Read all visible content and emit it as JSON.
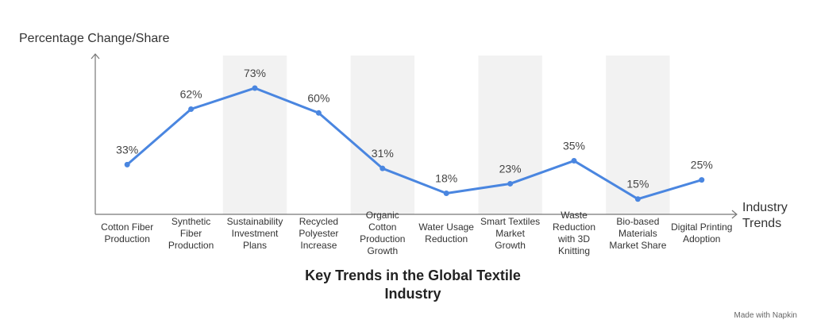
{
  "chart_data": {
    "type": "line",
    "title": "Key Trends in the Global Textile Industry",
    "y_label": "Percentage Change/Share",
    "x_label": "Industry Trends",
    "categories": [
      "Cotton Fiber Production",
      "Synthetic Fiber Production",
      "Sustainability Investment Plans",
      "Recycled Polyester Increase",
      "Organic Cotton Production Growth",
      "Water Usage Reduction",
      "Smart Textiles Market Growth",
      "Waste Reduction with 3D Knitting",
      "Bio-based Materials Market Share",
      "Digital Printing Adoption"
    ],
    "values": [
      33,
      62,
      73,
      60,
      31,
      18,
      23,
      35,
      15,
      25
    ],
    "value_labels": [
      "33%",
      "62%",
      "73%",
      "60%",
      "31%",
      "18%",
      "23%",
      "35%",
      "15%",
      "25%"
    ],
    "color": "#4a86e0",
    "band_color": "#f2f2f2",
    "ylim": [
      7,
      90
    ]
  },
  "footer": "Made with Napkin"
}
